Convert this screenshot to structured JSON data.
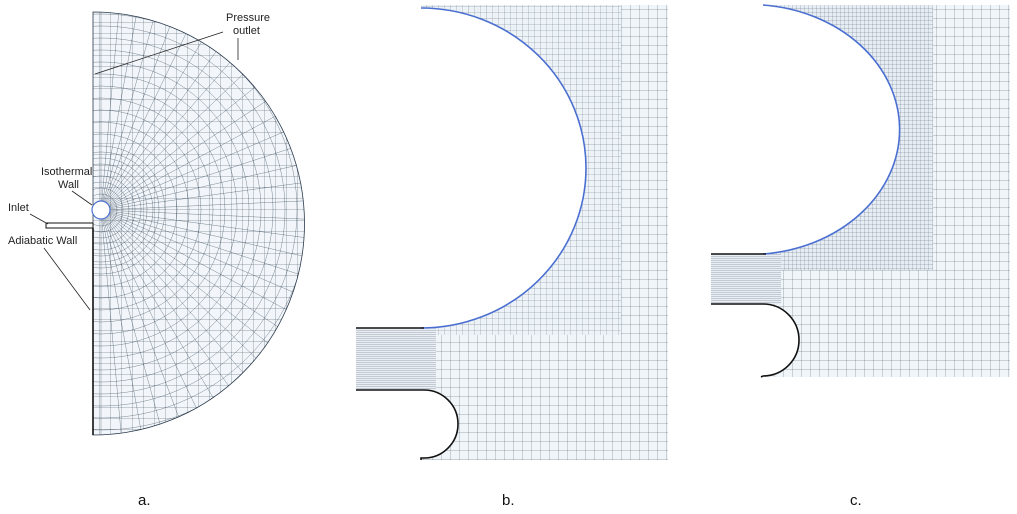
{
  "panel_a": {
    "labels": {
      "pressure_outlet_line1": "Pressure",
      "pressure_outlet_line2": "outlet",
      "isothermal_wall_line1": "Isothermal",
      "isothermal_wall_line2": "Wall",
      "inlet": "Inlet",
      "adiabatic_wall": "Adiabatic Wall"
    },
    "caption": "a."
  },
  "panel_b": {
    "caption": "b."
  },
  "panel_c": {
    "caption": "c."
  },
  "colors": {
    "mesh": "#1c2a3a",
    "mesh_background": "#eef3f8",
    "wall_highlight": "#4a6fd0",
    "wall": "#111111"
  }
}
